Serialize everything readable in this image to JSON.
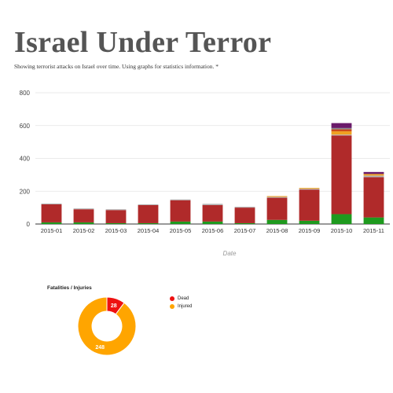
{
  "page": {
    "title": "Israel Under Terror",
    "subtitle": "Showing terrorist attacks on Israel over time. Using graphs for statistics information. *"
  },
  "chart_data": [
    {
      "type": "bar",
      "stacked": true,
      "xlabel": "Date",
      "ylabel": "",
      "ylim": [
        0,
        800
      ],
      "yticks": [
        0,
        200,
        400,
        600,
        800
      ],
      "grid": true,
      "categories": [
        "2015-01",
        "2015-02",
        "2015-03",
        "2015-04",
        "2015-05",
        "2015-06",
        "2015-07",
        "2015-08",
        "2015-09",
        "2015-10",
        "2015-11"
      ],
      "series": [
        {
          "color": "#1e9a1e",
          "values": [
            10,
            10,
            5,
            5,
            15,
            15,
            5,
            25,
            20,
            60,
            40
          ]
        },
        {
          "color": "#b02a2a",
          "values": [
            110,
            80,
            80,
            110,
            130,
            100,
            95,
            135,
            190,
            480,
            245
          ]
        },
        {
          "color": "#b3b3b3",
          "values": [
            5,
            5,
            5,
            5,
            5,
            8,
            5,
            5,
            5,
            5,
            10
          ]
        },
        {
          "color": "#f0a020",
          "values": [
            0,
            0,
            0,
            0,
            0,
            0,
            0,
            5,
            5,
            20,
            10
          ]
        },
        {
          "color": "#cc4a1a",
          "values": [
            0,
            0,
            0,
            0,
            0,
            0,
            0,
            0,
            0,
            12,
            0
          ]
        },
        {
          "color": "#8a8a8a",
          "values": [
            0,
            0,
            0,
            0,
            0,
            0,
            0,
            0,
            0,
            8,
            0
          ]
        },
        {
          "color": "#6a1a6a",
          "values": [
            0,
            0,
            0,
            0,
            0,
            0,
            0,
            0,
            0,
            30,
            12
          ]
        }
      ]
    },
    {
      "type": "pie",
      "donut": true,
      "title": "Fatalities / Injuries",
      "labels": [
        "Dead",
        "Injured"
      ],
      "values": [
        28,
        248
      ],
      "colors": [
        "#ee1111",
        "#ffa500"
      ],
      "legend": "right"
    }
  ]
}
